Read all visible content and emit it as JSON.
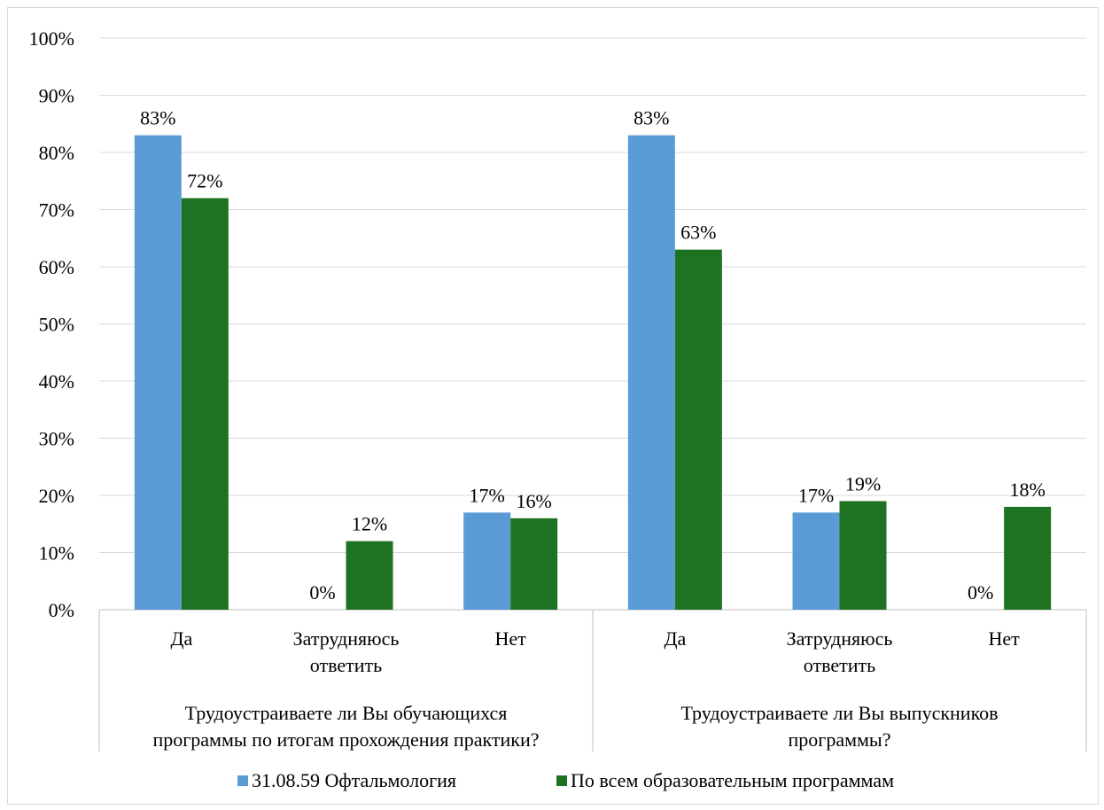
{
  "chart_data": {
    "type": "bar",
    "groups": [
      {
        "label_lines": [
          "Трудоустраиваете ли Вы обучающихся",
          "программы по итогам прохождения практики?"
        ],
        "categories": [
          {
            "label_lines": [
              "Да"
            ]
          },
          {
            "label_lines": [
              "Затрудняюсь",
              "ответить"
            ]
          },
          {
            "label_lines": [
              "Нет"
            ]
          }
        ]
      },
      {
        "label_lines": [
          "Трудоустраиваете ли Вы выпускников",
          "программы?"
        ],
        "categories": [
          {
            "label_lines": [
              "Да"
            ]
          },
          {
            "label_lines": [
              "Затрудняюсь",
              "ответить"
            ]
          },
          {
            "label_lines": [
              "Нет"
            ]
          }
        ]
      }
    ],
    "series": [
      {
        "name": "31.08.59 Офтальмология",
        "color": "#5b9bd5",
        "values": [
          83,
          0,
          17,
          83,
          17,
          0
        ],
        "labels": [
          "83%",
          "0%",
          "17%",
          "83%",
          "17%",
          "0%"
        ]
      },
      {
        "name": "По всем образовательным программам",
        "color": "#1e7322",
        "values": [
          72,
          12,
          16,
          63,
          19,
          18
        ],
        "labels": [
          "72%",
          "12%",
          "16%",
          "63%",
          "19%",
          "18%"
        ]
      }
    ],
    "ylim": [
      0,
      100
    ],
    "yticks": [
      "0%",
      "10%",
      "20%",
      "30%",
      "40%",
      "50%",
      "60%",
      "70%",
      "80%",
      "90%",
      "100%"
    ],
    "grid": true,
    "legend_position": "bottom"
  }
}
